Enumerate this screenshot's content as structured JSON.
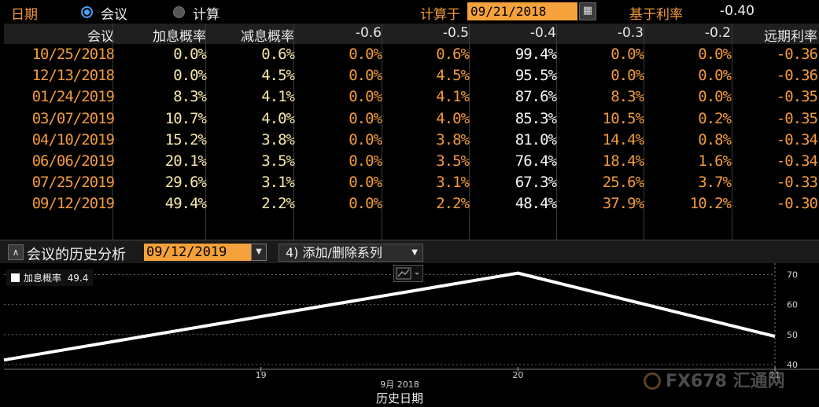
{
  "toolbar": {
    "date_label": "日期",
    "option_meeting": "会议",
    "option_calc": "计算",
    "calc_on_label": "计算于",
    "calc_date": "09/21/2018",
    "base_rate_label": "基于利率",
    "base_rate_value": "-0.40"
  },
  "table": {
    "headers": [
      "会议",
      "加息概率",
      "减息概率",
      "-0.6",
      "-0.5",
      "-0.4",
      "-0.3",
      "-0.2",
      "远期利率"
    ],
    "rows": [
      [
        "10/25/2018",
        "0.0%",
        "0.6%",
        "0.0%",
        "0.6%",
        "99.4%",
        "0.0%",
        "0.0%",
        "-0.36"
      ],
      [
        "12/13/2018",
        "0.0%",
        "4.5%",
        "0.0%",
        "4.5%",
        "95.5%",
        "0.0%",
        "0.0%",
        "-0.36"
      ],
      [
        "01/24/2019",
        "8.3%",
        "4.1%",
        "0.0%",
        "4.1%",
        "87.6%",
        "8.3%",
        "0.0%",
        "-0.35"
      ],
      [
        "03/07/2019",
        "10.7%",
        "4.0%",
        "0.0%",
        "4.0%",
        "85.3%",
        "10.5%",
        "0.2%",
        "-0.35"
      ],
      [
        "04/10/2019",
        "15.2%",
        "3.8%",
        "0.0%",
        "3.8%",
        "81.0%",
        "14.4%",
        "0.8%",
        "-0.34"
      ],
      [
        "06/06/2019",
        "20.1%",
        "3.5%",
        "0.0%",
        "3.5%",
        "76.4%",
        "18.4%",
        "1.6%",
        "-0.34"
      ],
      [
        "07/25/2019",
        "29.6%",
        "3.1%",
        "0.0%",
        "3.1%",
        "67.3%",
        "25.6%",
        "3.7%",
        "-0.33"
      ],
      [
        "09/12/2019",
        "49.4%",
        "2.2%",
        "0.0%",
        "2.2%",
        "48.4%",
        "37.9%",
        "10.2%",
        "-0.30"
      ]
    ]
  },
  "history": {
    "title": "会议的历史分析",
    "date": "09/12/2019",
    "series_button": "4) 添加/删除系列"
  },
  "colors": {
    "accent_orange": "#f29a3a",
    "input_orange": "#f6a23c",
    "pale_yellow": "#f5e6a8"
  },
  "chart_data": {
    "type": "line",
    "series": [
      {
        "name": "加息概率",
        "x": [
          18.0,
          20.0,
          21.0
        ],
        "y": [
          41.5,
          70.5,
          49.4
        ]
      }
    ],
    "legend": {
      "label": "加息概率",
      "value": "49.4",
      "position": "top-left"
    },
    "x_ticks": [
      "19",
      "20",
      "21"
    ],
    "x_tick_values": [
      19,
      20,
      21
    ],
    "xlim": [
      18.0,
      21.0
    ],
    "y_ticks": [
      "40",
      "50",
      "60",
      "70"
    ],
    "ylim": [
      38.4,
      72.5
    ],
    "x_month_label": "9月  2018",
    "xlabel": "历史日期",
    "grid": true
  },
  "watermark": "FX678 汇通网"
}
